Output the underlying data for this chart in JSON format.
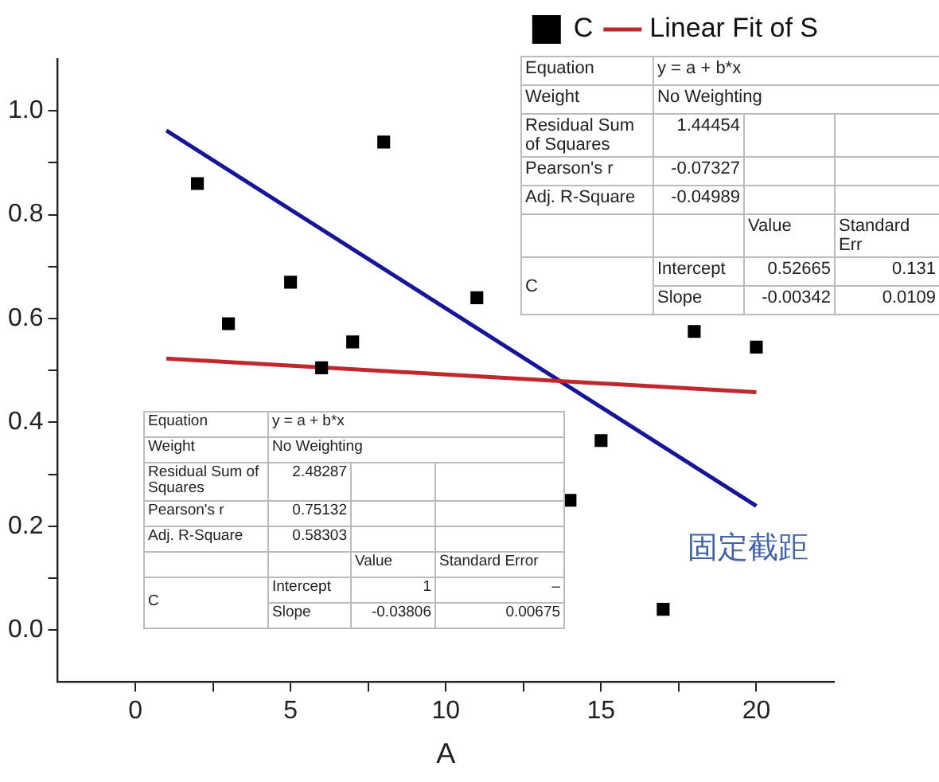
{
  "chart_data": {
    "type": "scatter",
    "xlabel": "A",
    "xlim": [
      -2.5,
      22.5
    ],
    "xticks": [
      0,
      {
        "value": 2.5,
        "label": null
      },
      5,
      {
        "value": 7.5,
        "label": null
      },
      10,
      {
        "value": 12.5,
        "label": null
      },
      15,
      {
        "value": 17.5,
        "label": null
      },
      20
    ],
    "ylim": [
      -0.1,
      1.1
    ],
    "yticks": [
      {
        "value": 0,
        "label": "0.0"
      },
      {
        "value": 0.1,
        "label": null
      },
      {
        "value": 0.2,
        "label": "0.2"
      },
      {
        "value": 0.3,
        "label": null
      },
      {
        "value": 0.4,
        "label": "0.4"
      },
      {
        "value": 0.5,
        "label": null
      },
      {
        "value": 0.6,
        "label": "0.6"
      },
      {
        "value": 0.7,
        "label": null
      },
      {
        "value": 0.8,
        "label": "0.8"
      },
      {
        "value": 0.9,
        "label": null
      },
      {
        "value": 1,
        "label": "1.0"
      }
    ],
    "grid": false,
    "legend": "top right",
    "series": [
      {
        "name": "C",
        "marker": "square",
        "color": "#000000",
        "x": [
          2,
          3,
          5,
          6,
          7,
          8,
          11,
          14,
          15,
          17,
          18,
          20
        ],
        "values": [
          0.86,
          0.59,
          0.67,
          0.505,
          0.555,
          0.94,
          0.64,
          0.25,
          0.365,
          0.04,
          0.575,
          0.545
        ]
      },
      {
        "name": "Linear Fit of S",
        "type": "line",
        "marker": "none",
        "color": "#c0282d",
        "x": [
          1,
          20
        ],
        "values": [
          0.523,
          0.458
        ]
      },
      {
        "type": "line",
        "marker": "none",
        "color": "#161699",
        "x": [
          1,
          20
        ],
        "values": [
          0.962,
          0.239
        ]
      }
    ],
    "annotations": [
      "固定截距",
      "Equation",
      "y = a + b*x",
      "Weight",
      "No Weighting",
      "Residual Sum of Squares",
      "1.44454",
      "Pearson's r",
      "-0.07327",
      "Adj. R-Square",
      "-0.04989",
      "Value",
      "Standard Err",
      "C",
      "Intercept",
      "0.52665",
      "0.131",
      "Slope",
      "-0.00342",
      "0.0109",
      "Equation",
      "y = a + b*x",
      "Weight",
      "No Weighting",
      "Residual Sum of Squares",
      "2.48287",
      "Pearson's r",
      "0.75132",
      "Adj. R-Square",
      "0.58303",
      "Value",
      "Standard Error",
      "C",
      "Intercept",
      "1",
      "–",
      "Slope",
      "-0.03806",
      "0.00675"
    ]
  }
}
